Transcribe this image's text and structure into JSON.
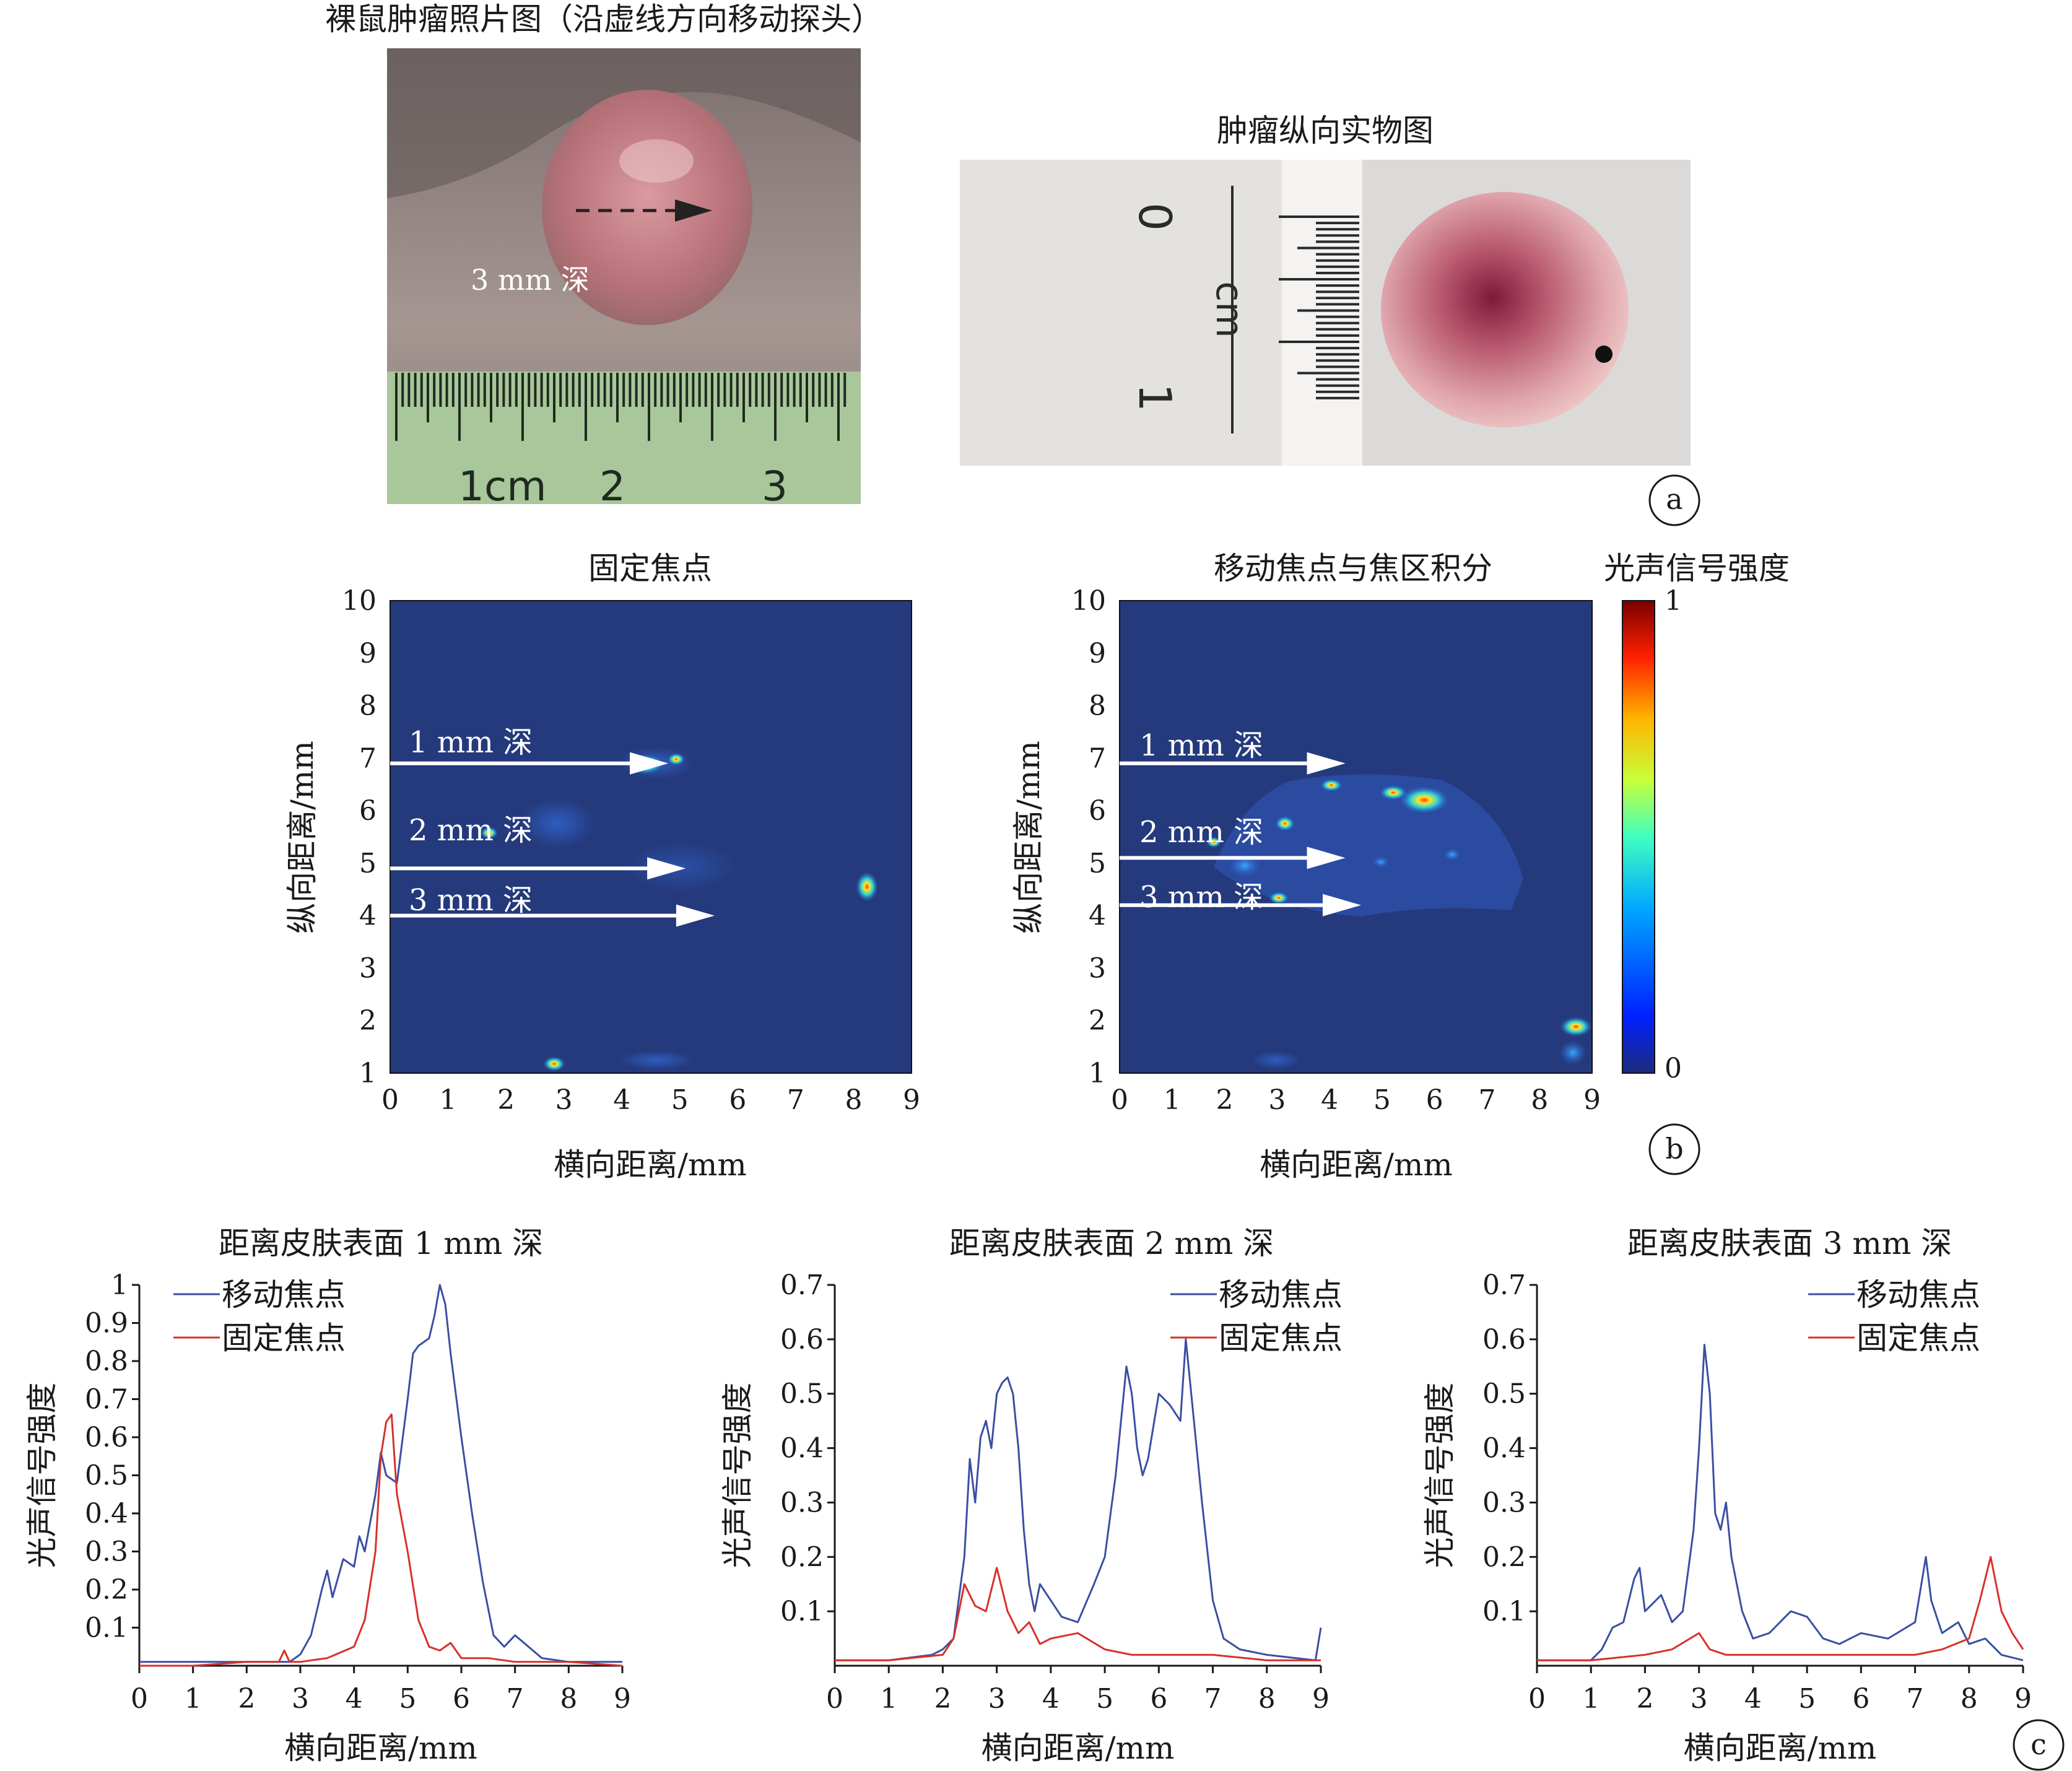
{
  "panel_a": {
    "photo1_title": "裸鼠肿瘤照片图（沿虚线方向移动探头）",
    "photo1_depth": "3 mm 深",
    "ruler1_labels": [
      "1cm",
      "2",
      "3"
    ],
    "photo2_title": "肿瘤纵向实物图",
    "ruler2_labels": [
      "0",
      "cm",
      "1"
    ],
    "panel_label": "a"
  },
  "panel_b": {
    "panel_label": "b",
    "colorbar": {
      "title": "光声信号强度",
      "max_label": "1",
      "min_label": "0"
    },
    "maps": [
      {
        "title": "固定焦点",
        "xlabel": "横向距离/mm",
        "ylabel": "纵向距离/mm",
        "xticks": [
          "0",
          "1",
          "2",
          "3",
          "4",
          "5",
          "6",
          "7",
          "8",
          "9"
        ],
        "yticks": [
          "1",
          "2",
          "3",
          "4",
          "5",
          "6",
          "7",
          "8",
          "9",
          "10"
        ],
        "arrows": [
          {
            "label": "1 mm 深",
            "y": 6.9,
            "x_end": 4.8
          },
          {
            "label": "2 mm 深",
            "y": 4.9,
            "x_end": 5.1
          },
          {
            "label": "3 mm 深",
            "y": 4.0,
            "x_end": 5.6
          }
        ]
      },
      {
        "title": "移动焦点与焦区积分",
        "xlabel": "横向距离/mm",
        "ylabel": "纵向距离/mm",
        "xticks": [
          "0",
          "1",
          "2",
          "3",
          "4",
          "5",
          "6",
          "7",
          "8",
          "9"
        ],
        "yticks": [
          "1",
          "2",
          "3",
          "4",
          "5",
          "6",
          "7",
          "8",
          "9",
          "10"
        ],
        "arrows": [
          {
            "label": "1 mm 深",
            "y": 6.9,
            "x_end": 4.3
          },
          {
            "label": "2 mm 深",
            "y": 5.1,
            "x_end": 4.3
          },
          {
            "label": "3 mm 深",
            "y": 4.2,
            "x_end": 4.6
          }
        ]
      }
    ]
  },
  "panel_c": {
    "panel_label": "c"
  },
  "colors": {
    "moving": "#3a4fa3",
    "fixed": "#d7312a",
    "map_bg": "#253a7c"
  },
  "chart_data": [
    {
      "type": "line",
      "title": "距离皮肤表面 1 mm 深",
      "xlabel": "横向距离/mm",
      "ylabel": "光声信号强度",
      "xlim": [
        0,
        9
      ],
      "ylim": [
        0,
        1
      ],
      "xticks": [
        "0",
        "1",
        "2",
        "3",
        "4",
        "5",
        "6",
        "7",
        "8",
        "9"
      ],
      "yticks": [
        "0.1",
        "0.2",
        "0.3",
        "0.4",
        "0.5",
        "0.6",
        "0.7",
        "0.8",
        "0.9",
        "1"
      ],
      "legend": "top-left",
      "series": [
        {
          "name": "移动焦点",
          "x": [
            0,
            1,
            2,
            2.8,
            3.0,
            3.2,
            3.4,
            3.5,
            3.6,
            3.8,
            4.0,
            4.1,
            4.2,
            4.4,
            4.5,
            4.6,
            4.8,
            5.0,
            5.1,
            5.2,
            5.4,
            5.5,
            5.6,
            5.7,
            5.8,
            6.0,
            6.2,
            6.4,
            6.6,
            6.8,
            7.0,
            7.5,
            8,
            9
          ],
          "y": [
            0.01,
            0.01,
            0.01,
            0.01,
            0.03,
            0.08,
            0.2,
            0.25,
            0.18,
            0.28,
            0.26,
            0.34,
            0.3,
            0.45,
            0.56,
            0.5,
            0.48,
            0.7,
            0.82,
            0.84,
            0.86,
            0.92,
            1.0,
            0.95,
            0.82,
            0.6,
            0.4,
            0.22,
            0.08,
            0.05,
            0.08,
            0.02,
            0.01,
            0.01
          ]
        },
        {
          "name": "固定焦点",
          "x": [
            0,
            1,
            2,
            2.6,
            2.7,
            2.8,
            3.0,
            3.5,
            4.0,
            4.2,
            4.4,
            4.5,
            4.6,
            4.7,
            4.8,
            5.0,
            5.2,
            5.4,
            5.6,
            5.8,
            6.0,
            6.5,
            7,
            8,
            9
          ],
          "y": [
            0.0,
            0.0,
            0.01,
            0.01,
            0.04,
            0.01,
            0.01,
            0.02,
            0.05,
            0.12,
            0.3,
            0.55,
            0.64,
            0.66,
            0.45,
            0.3,
            0.12,
            0.05,
            0.04,
            0.06,
            0.02,
            0.02,
            0.01,
            0.01,
            0.0
          ]
        }
      ]
    },
    {
      "type": "line",
      "title": "距离皮肤表面 2 mm 深",
      "xlabel": "横向距离/mm",
      "ylabel": "光声信号强度",
      "xlim": [
        0,
        9
      ],
      "ylim": [
        0,
        0.7
      ],
      "xticks": [
        "0",
        "1",
        "2",
        "3",
        "4",
        "5",
        "6",
        "7",
        "8",
        "9"
      ],
      "yticks": [
        "0.1",
        "0.2",
        "0.3",
        "0.4",
        "0.5",
        "0.6",
        "0.7"
      ],
      "legend": "top-right",
      "series": [
        {
          "name": "移动焦点",
          "x": [
            0,
            1,
            1.8,
            2.0,
            2.2,
            2.4,
            2.5,
            2.6,
            2.7,
            2.8,
            2.9,
            3.0,
            3.1,
            3.2,
            3.3,
            3.4,
            3.5,
            3.6,
            3.7,
            3.8,
            4.0,
            4.2,
            4.5,
            4.8,
            5.0,
            5.2,
            5.4,
            5.5,
            5.6,
            5.7,
            5.8,
            6.0,
            6.2,
            6.4,
            6.5,
            6.6,
            6.7,
            6.8,
            7.0,
            7.2,
            7.5,
            8,
            8.9,
            9.0
          ],
          "y": [
            0.01,
            0.01,
            0.02,
            0.03,
            0.05,
            0.2,
            0.38,
            0.3,
            0.42,
            0.45,
            0.4,
            0.5,
            0.52,
            0.53,
            0.5,
            0.4,
            0.25,
            0.15,
            0.1,
            0.15,
            0.12,
            0.09,
            0.08,
            0.15,
            0.2,
            0.35,
            0.55,
            0.5,
            0.4,
            0.35,
            0.38,
            0.5,
            0.48,
            0.45,
            0.6,
            0.5,
            0.4,
            0.3,
            0.12,
            0.05,
            0.03,
            0.02,
            0.01,
            0.07
          ]
        },
        {
          "name": "固定焦点",
          "x": [
            0,
            1,
            2,
            2.2,
            2.4,
            2.6,
            2.8,
            3.0,
            3.2,
            3.4,
            3.6,
            3.8,
            4.0,
            4.5,
            5.0,
            5.5,
            6,
            7,
            8,
            9
          ],
          "y": [
            0.01,
            0.01,
            0.02,
            0.05,
            0.15,
            0.11,
            0.1,
            0.18,
            0.1,
            0.06,
            0.08,
            0.04,
            0.05,
            0.06,
            0.03,
            0.02,
            0.02,
            0.02,
            0.01,
            0.01
          ]
        }
      ]
    },
    {
      "type": "line",
      "title": "距离皮肤表面 3 mm 深",
      "xlabel": "横向距离/mm",
      "ylabel": "光声信号强度",
      "xlim": [
        0,
        9
      ],
      "ylim": [
        0,
        0.7
      ],
      "xticks": [
        "0",
        "1",
        "2",
        "3",
        "4",
        "5",
        "6",
        "7",
        "8",
        "9"
      ],
      "yticks": [
        "0.1",
        "0.2",
        "0.3",
        "0.4",
        "0.5",
        "0.6",
        "0.7"
      ],
      "legend": "top-right",
      "series": [
        {
          "name": "移动焦点",
          "x": [
            0,
            1,
            1.2,
            1.4,
            1.6,
            1.8,
            1.9,
            2.0,
            2.2,
            2.3,
            2.5,
            2.7,
            2.9,
            3.0,
            3.1,
            3.2,
            3.3,
            3.4,
            3.5,
            3.6,
            3.8,
            4.0,
            4.3,
            4.5,
            4.7,
            5.0,
            5.3,
            5.6,
            6.0,
            6.5,
            7.0,
            7.2,
            7.3,
            7.5,
            7.8,
            8.0,
            8.3,
            8.6,
            9.0
          ],
          "y": [
            0.01,
            0.01,
            0.03,
            0.07,
            0.08,
            0.16,
            0.18,
            0.1,
            0.12,
            0.13,
            0.08,
            0.1,
            0.25,
            0.4,
            0.59,
            0.5,
            0.28,
            0.25,
            0.3,
            0.2,
            0.1,
            0.05,
            0.06,
            0.08,
            0.1,
            0.09,
            0.05,
            0.04,
            0.06,
            0.05,
            0.08,
            0.2,
            0.12,
            0.06,
            0.08,
            0.04,
            0.05,
            0.02,
            0.01
          ]
        },
        {
          "name": "固定焦点",
          "x": [
            0,
            1,
            2,
            2.5,
            3.0,
            3.2,
            3.5,
            4,
            5,
            6,
            7,
            7.5,
            8.0,
            8.2,
            8.4,
            8.6,
            8.8,
            9.0
          ],
          "y": [
            0.01,
            0.01,
            0.02,
            0.03,
            0.06,
            0.03,
            0.02,
            0.02,
            0.02,
            0.02,
            0.02,
            0.03,
            0.05,
            0.12,
            0.2,
            0.1,
            0.06,
            0.03
          ]
        }
      ]
    }
  ]
}
